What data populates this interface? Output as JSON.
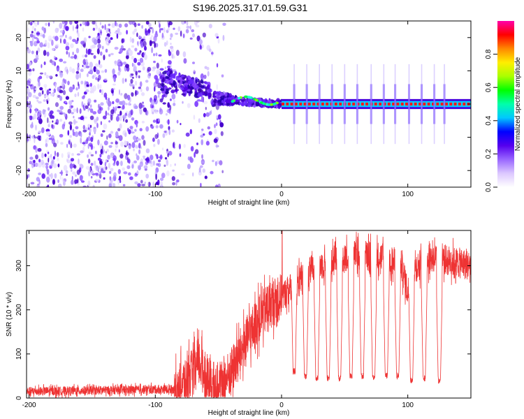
{
  "title": "S196.2025.317.01.59.G31",
  "chart_data": [
    {
      "type": "heatmap",
      "name": "spectrogram",
      "xlabel": "Height of straight line (km)",
      "ylabel": "Frequency (Hz)",
      "xlim": [
        -202,
        150
      ],
      "ylim": [
        -25,
        25
      ],
      "xticks": [
        -200,
        -100,
        0,
        100
      ],
      "yticks": [
        -20,
        -10,
        0,
        10,
        20
      ],
      "colorbar": {
        "label": "Normalized spectral amplitude",
        "range": [
          0,
          1
        ],
        "ticks": [
          "0.0",
          "0.2",
          "0.4",
          "0.6",
          "0.8"
        ],
        "tick_values": [
          0,
          0.2,
          0.4,
          0.6,
          0.8
        ],
        "colors": [
          "#ffffff",
          "#dcc8ff",
          "#9966ff",
          "#5500ee",
          "#0000ff",
          "#00c8ff",
          "#00ffaa",
          "#00ff00",
          "#aaff00",
          "#ffee00",
          "#ff8800",
          "#ff0000",
          "#ff00aa"
        ]
      },
      "noise_region_km": [
        -202,
        -45
      ],
      "transition_region_km": [
        -95,
        0
      ],
      "tone_frequency_hz": 0,
      "tone_start_km": 0,
      "dropout_centers_km": [
        10,
        20,
        30,
        40,
        50,
        60,
        71,
        81,
        90,
        101,
        111,
        121,
        129
      ]
    },
    {
      "type": "line",
      "name": "snr",
      "xlabel": "Height of straight line (km)",
      "ylabel": "SNR (10 * v/v)",
      "xlim": [
        -202,
        150
      ],
      "ylim": [
        0,
        380
      ],
      "xticks": [
        -200,
        -100,
        0,
        100
      ],
      "yticks": [
        0,
        100,
        200,
        300
      ],
      "color": "#ee3333",
      "series_profile": [
        {
          "x": -202,
          "y": 15
        },
        {
          "x": -85,
          "y": 20
        },
        {
          "x": -75,
          "y": 40
        },
        {
          "x": -65,
          "y": 80
        },
        {
          "x": -58,
          "y": 40
        },
        {
          "x": -50,
          "y": 20
        },
        {
          "x": -40,
          "y": 60
        },
        {
          "x": -30,
          "y": 120
        },
        {
          "x": -20,
          "y": 170
        },
        {
          "x": -10,
          "y": 210
        },
        {
          "x": 0,
          "y": 230
        },
        {
          "x": 10,
          "y": 255
        },
        {
          "x": 20,
          "y": 280
        },
        {
          "x": 30,
          "y": 300
        },
        {
          "x": 45,
          "y": 320
        },
        {
          "x": 60,
          "y": 325
        },
        {
          "x": 80,
          "y": 320
        },
        {
          "x": 95,
          "y": 300
        },
        {
          "x": 100,
          "y": 240
        },
        {
          "x": 105,
          "y": 295
        },
        {
          "x": 120,
          "y": 320
        },
        {
          "x": 150,
          "y": 300
        }
      ],
      "spike": {
        "x": 0.5,
        "y": 380
      },
      "dropouts": [
        {
          "x": 10,
          "y": 60
        },
        {
          "x": 19,
          "y": 50
        },
        {
          "x": 28,
          "y": 45
        },
        {
          "x": 37,
          "y": 45
        },
        {
          "x": 46,
          "y": 45
        },
        {
          "x": 55,
          "y": 50
        },
        {
          "x": 64,
          "y": 50
        },
        {
          "x": 73,
          "y": 45
        },
        {
          "x": 83,
          "y": 50
        },
        {
          "x": 92,
          "y": 50
        },
        {
          "x": 103,
          "y": 40
        },
        {
          "x": 113,
          "y": 45
        },
        {
          "x": 125,
          "y": 40
        }
      ]
    }
  ]
}
